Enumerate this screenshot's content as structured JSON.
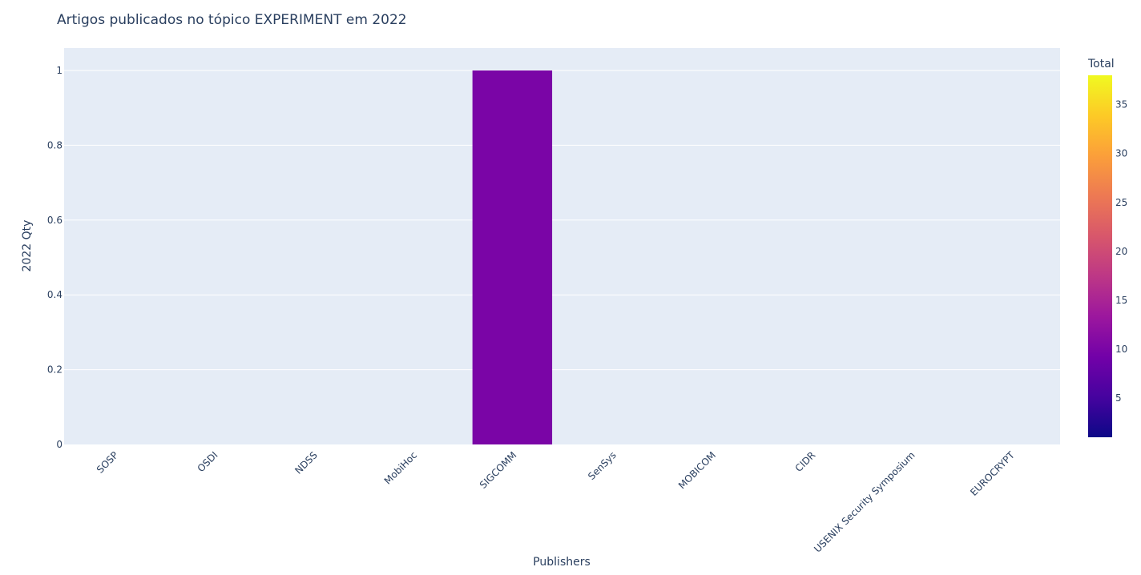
{
  "chart_data": {
    "type": "bar",
    "title": "Artigos publicados no tópico EXPERIMENT em 2022",
    "xlabel": "Publishers",
    "ylabel": "2022 Qty",
    "categories": [
      "SOSP",
      "OSDI",
      "NDSS",
      "MobiHoc",
      "SIGCOMM",
      "SenSys",
      "MOBICOM",
      "CIDR",
      "USENIX Security Symposium",
      "EUROCRYPT"
    ],
    "values": [
      0,
      0,
      0,
      0,
      1,
      0,
      0,
      0,
      0,
      0
    ],
    "color_values": [
      1,
      1,
      1,
      1,
      10,
      1,
      1,
      1,
      1,
      1
    ],
    "ylim": [
      0,
      1.06
    ],
    "y_ticks": [
      0,
      0.2,
      0.4,
      0.6,
      0.8,
      1
    ],
    "y_tick_labels": [
      "0",
      "0.2",
      "0.4",
      "0.6",
      "0.8",
      "1"
    ],
    "grid": true,
    "colorbar": {
      "title": "Total",
      "range": [
        1,
        38
      ],
      "ticks": [
        5,
        10,
        15,
        20,
        25,
        30,
        35
      ],
      "tick_labels": [
        "5",
        "10",
        "15",
        "20",
        "25",
        "30",
        "35"
      ],
      "colorscale": [
        "#0d0887",
        "#46039f",
        "#7201a8",
        "#9c179e",
        "#bd3786",
        "#d8576b",
        "#ed7953",
        "#fb9f3a",
        "#fdca26",
        "#f0f921"
      ]
    },
    "plot_background": "#e5ecf6",
    "grid_color": "#ffffff",
    "text_color": "#2a3f5f"
  }
}
